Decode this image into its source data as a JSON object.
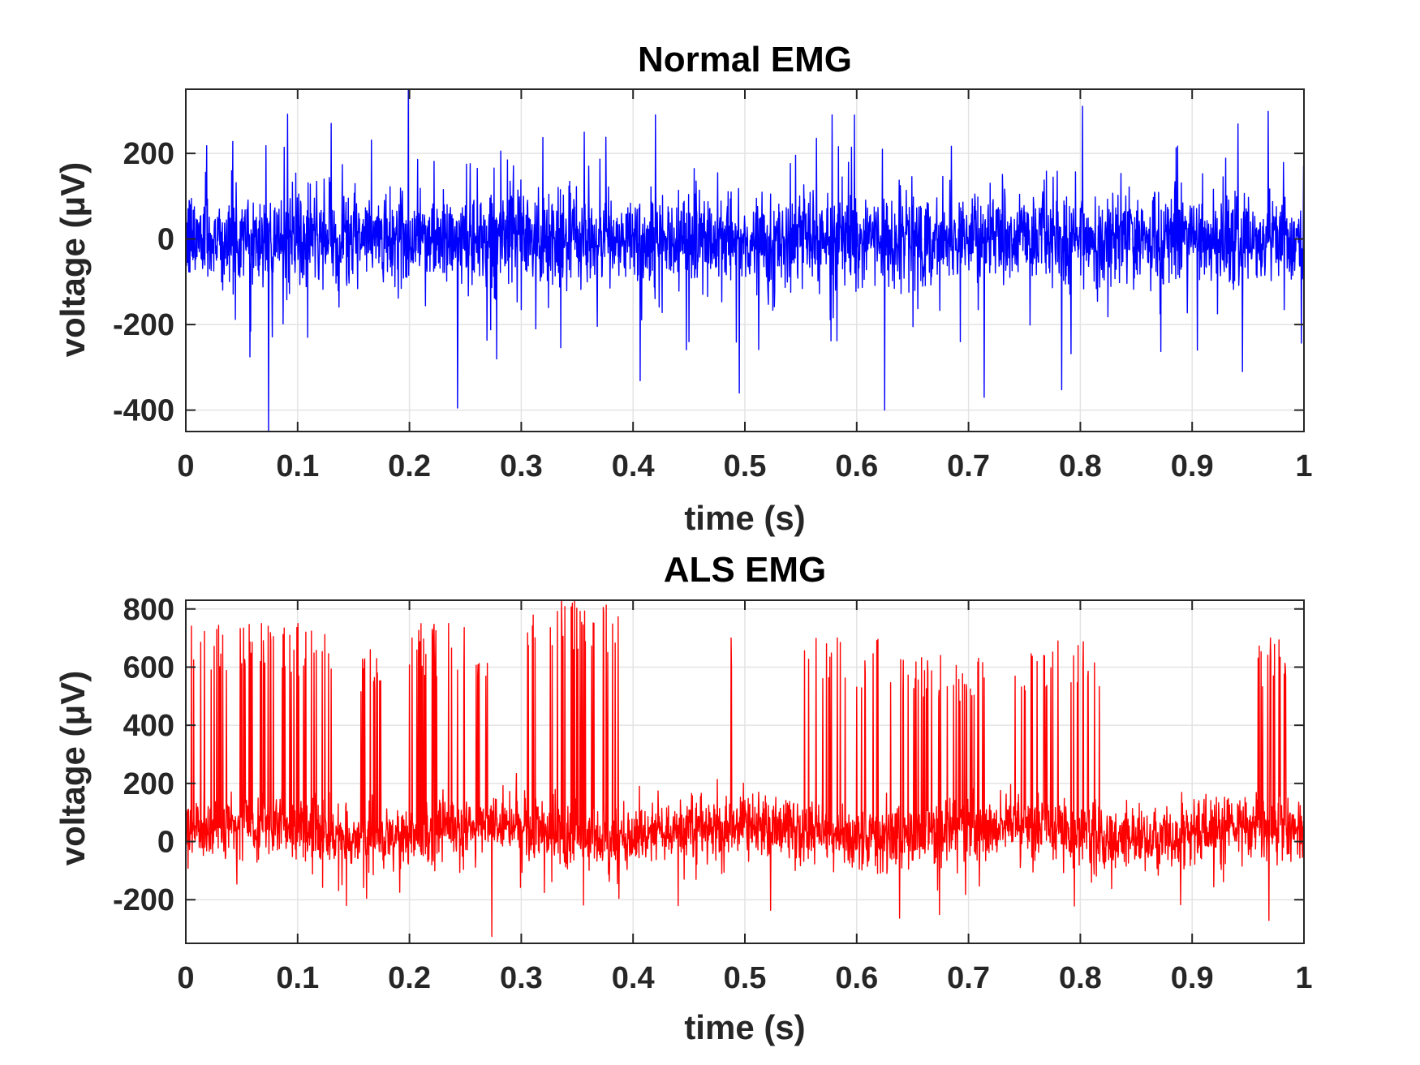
{
  "chart_data": [
    {
      "type": "line",
      "title": "Normal EMG",
      "xlabel": "time (s)",
      "ylabel": "voltage (μV)",
      "xlim": [
        0,
        1
      ],
      "ylim": [
        -450,
        350
      ],
      "xticks": [
        0,
        0.1,
        0.2,
        0.3,
        0.4,
        0.5,
        0.6,
        0.7,
        0.8,
        0.9,
        1
      ],
      "xtick_labels": [
        "0",
        "0.1",
        "0.2",
        "0.3",
        "0.4",
        "0.5",
        "0.6",
        "0.7",
        "0.8",
        "0.9",
        "1"
      ],
      "yticks": [
        -400,
        -200,
        0,
        200
      ],
      "ytick_labels": [
        "-400",
        "-200",
        "0",
        "200"
      ],
      "grid": true,
      "color": "#0000ff",
      "series": [
        {
          "name": "Normal EMG",
          "description": "dense noisy signal, baseline approx 0, typical amplitude within +/-150 uV",
          "peaks": [
            {
              "x": 0.074,
              "y": -450
            },
            {
              "x": 0.13,
              "y": 270
            },
            {
              "x": 0.199,
              "y": 350
            },
            {
              "x": 0.243,
              "y": -395
            },
            {
              "x": 0.42,
              "y": 290
            },
            {
              "x": 0.495,
              "y": -360
            },
            {
              "x": 0.578,
              "y": 290
            },
            {
              "x": 0.625,
              "y": -400
            },
            {
              "x": 0.714,
              "y": -370
            },
            {
              "x": 0.802,
              "y": 310
            },
            {
              "x": 0.945,
              "y": -310
            }
          ]
        }
      ]
    },
    {
      "type": "line",
      "title": "ALS EMG",
      "xlabel": "time (s)",
      "ylabel": "voltage (μV)",
      "xlim": [
        0,
        1
      ],
      "ylim": [
        -350,
        830
      ],
      "xticks": [
        0,
        0.1,
        0.2,
        0.3,
        0.4,
        0.5,
        0.6,
        0.7,
        0.8,
        0.9,
        1
      ],
      "xtick_labels": [
        "0",
        "0.1",
        "0.2",
        "0.3",
        "0.4",
        "0.5",
        "0.6",
        "0.7",
        "0.8",
        "0.9",
        "1"
      ],
      "yticks": [
        -200,
        0,
        200,
        400,
        600,
        800
      ],
      "ytick_labels": [
        "-200",
        "0",
        "200",
        "400",
        "600",
        "800"
      ],
      "grid": true,
      "color": "#ff0000",
      "series": [
        {
          "name": "ALS EMG",
          "description": "noisy baseline approx 0 to 60 uV with bursts of large positive motor unit spikes",
          "bursts": [
            {
              "start": 0.005,
              "end": 0.13,
              "peak": 750
            },
            {
              "start": 0.155,
              "end": 0.175,
              "peak": 660
            },
            {
              "start": 0.2,
              "end": 0.27,
              "peak": 750
            },
            {
              "start": 0.305,
              "end": 0.39,
              "peak": 830
            },
            {
              "start": 0.485,
              "end": 0.49,
              "peak": 700
            },
            {
              "start": 0.545,
              "end": 0.62,
              "peak": 700
            },
            {
              "start": 0.63,
              "end": 0.72,
              "peak": 640
            },
            {
              "start": 0.74,
              "end": 0.82,
              "peak": 690
            },
            {
              "start": 0.955,
              "end": 0.985,
              "peak": 700
            }
          ]
        }
      ]
    }
  ]
}
